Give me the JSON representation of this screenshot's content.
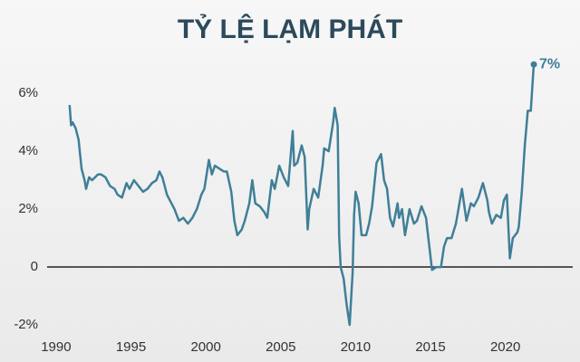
{
  "chart_data": {
    "type": "line",
    "title": "TỶ LỆ LẠM PHÁT",
    "annotation": "7%",
    "x": [
      1990.9,
      1991.0,
      1991.1,
      1991.3,
      1991.5,
      1991.7,
      1991.9,
      1992.0,
      1992.2,
      1992.4,
      1992.6,
      1992.8,
      1993.0,
      1993.3,
      1993.6,
      1993.9,
      1994.1,
      1994.4,
      1994.7,
      1994.9,
      1995.2,
      1995.5,
      1995.8,
      1996.1,
      1996.4,
      1996.7,
      1996.9,
      1997.1,
      1997.4,
      1997.7,
      1997.9,
      1998.2,
      1998.5,
      1998.8,
      1999.1,
      1999.4,
      1999.7,
      1999.9,
      2000.2,
      2000.4,
      2000.6,
      2000.9,
      2001.2,
      2001.4,
      2001.7,
      2001.9,
      2002.1,
      2002.4,
      2002.6,
      2002.9,
      2003.1,
      2003.3,
      2003.6,
      2003.9,
      2004.1,
      2004.4,
      2004.6,
      2004.9,
      2005.2,
      2005.5,
      2005.8,
      2005.9,
      2006.1,
      2006.4,
      2006.6,
      2006.8,
      2006.9,
      2007.2,
      2007.5,
      2007.8,
      2007.9,
      2008.2,
      2008.5,
      2008.6,
      2008.8,
      2008.9,
      2009.0,
      2009.2,
      2009.4,
      2009.6,
      2009.8,
      2009.9,
      2010.0,
      2010.2,
      2010.4,
      2010.7,
      2010.9,
      2011.1,
      2011.4,
      2011.7,
      2011.9,
      2012.1,
      2012.3,
      2012.5,
      2012.8,
      2012.9,
      2013.1,
      2013.3,
      2013.6,
      2013.9,
      2014.1,
      2014.4,
      2014.7,
      2014.9,
      2015.1,
      2015.4,
      2015.7,
      2015.9,
      2016.1,
      2016.4,
      2016.7,
      2016.9,
      2017.1,
      2017.4,
      2017.7,
      2017.9,
      2018.2,
      2018.5,
      2018.8,
      2018.9,
      2019.1,
      2019.4,
      2019.7,
      2019.9,
      2020.1,
      2020.3,
      2020.5,
      2020.8,
      2020.9,
      2021.1,
      2021.3,
      2021.5,
      2021.7,
      2021.9
    ],
    "series": [
      {
        "color": "#3f7f98",
        "values": [
          5.6,
          4.9,
          5.0,
          4.8,
          4.4,
          3.4,
          3.0,
          2.7,
          3.1,
          3.0,
          3.1,
          3.2,
          3.2,
          3.1,
          2.8,
          2.7,
          2.5,
          2.4,
          2.9,
          2.7,
          3.0,
          2.8,
          2.6,
          2.7,
          2.9,
          3.0,
          3.3,
          3.1,
          2.5,
          2.2,
          2.0,
          1.6,
          1.7,
          1.5,
          1.7,
          2.0,
          2.5,
          2.7,
          3.7,
          3.2,
          3.5,
          3.4,
          3.3,
          3.3,
          2.6,
          1.6,
          1.1,
          1.3,
          1.6,
          2.2,
          3.0,
          2.2,
          2.1,
          1.9,
          1.7,
          3.0,
          2.7,
          3.5,
          3.1,
          2.8,
          4.7,
          3.5,
          3.6,
          4.2,
          3.8,
          1.3,
          2.0,
          2.7,
          2.4,
          3.5,
          4.1,
          4.0,
          5.0,
          5.5,
          4.9,
          1.1,
          0.0,
          -0.4,
          -1.3,
          -2.0,
          -0.2,
          1.8,
          2.6,
          2.2,
          1.1,
          1.1,
          1.5,
          2.1,
          3.6,
          3.9,
          3.0,
          2.7,
          1.7,
          1.4,
          2.2,
          1.7,
          2.0,
          1.1,
          2.0,
          1.5,
          1.6,
          2.1,
          1.7,
          0.8,
          -0.1,
          0.0,
          0.0,
          0.7,
          1.0,
          1.0,
          1.5,
          2.1,
          2.7,
          1.6,
          2.2,
          2.1,
          2.4,
          2.9,
          2.3,
          1.9,
          1.5,
          1.8,
          1.7,
          2.3,
          2.5,
          0.3,
          1.0,
          1.2,
          1.4,
          2.6,
          4.2,
          5.4,
          5.4,
          7.0
        ]
      }
    ],
    "xlim": [
      1989.4,
      2024.5
    ],
    "xticks": [
      1990,
      1995,
      2000,
      2005,
      2010,
      2015,
      2020
    ],
    "ylim": [
      -2.5,
      7.35
    ],
    "yticks": [
      {
        "value": -2,
        "label": "-2%"
      },
      0,
      {
        "value": 2,
        "label": "2%"
      },
      {
        "value": 4,
        "label": "4%"
      },
      {
        "value": 6,
        "label": "6%"
      }
    ]
  }
}
